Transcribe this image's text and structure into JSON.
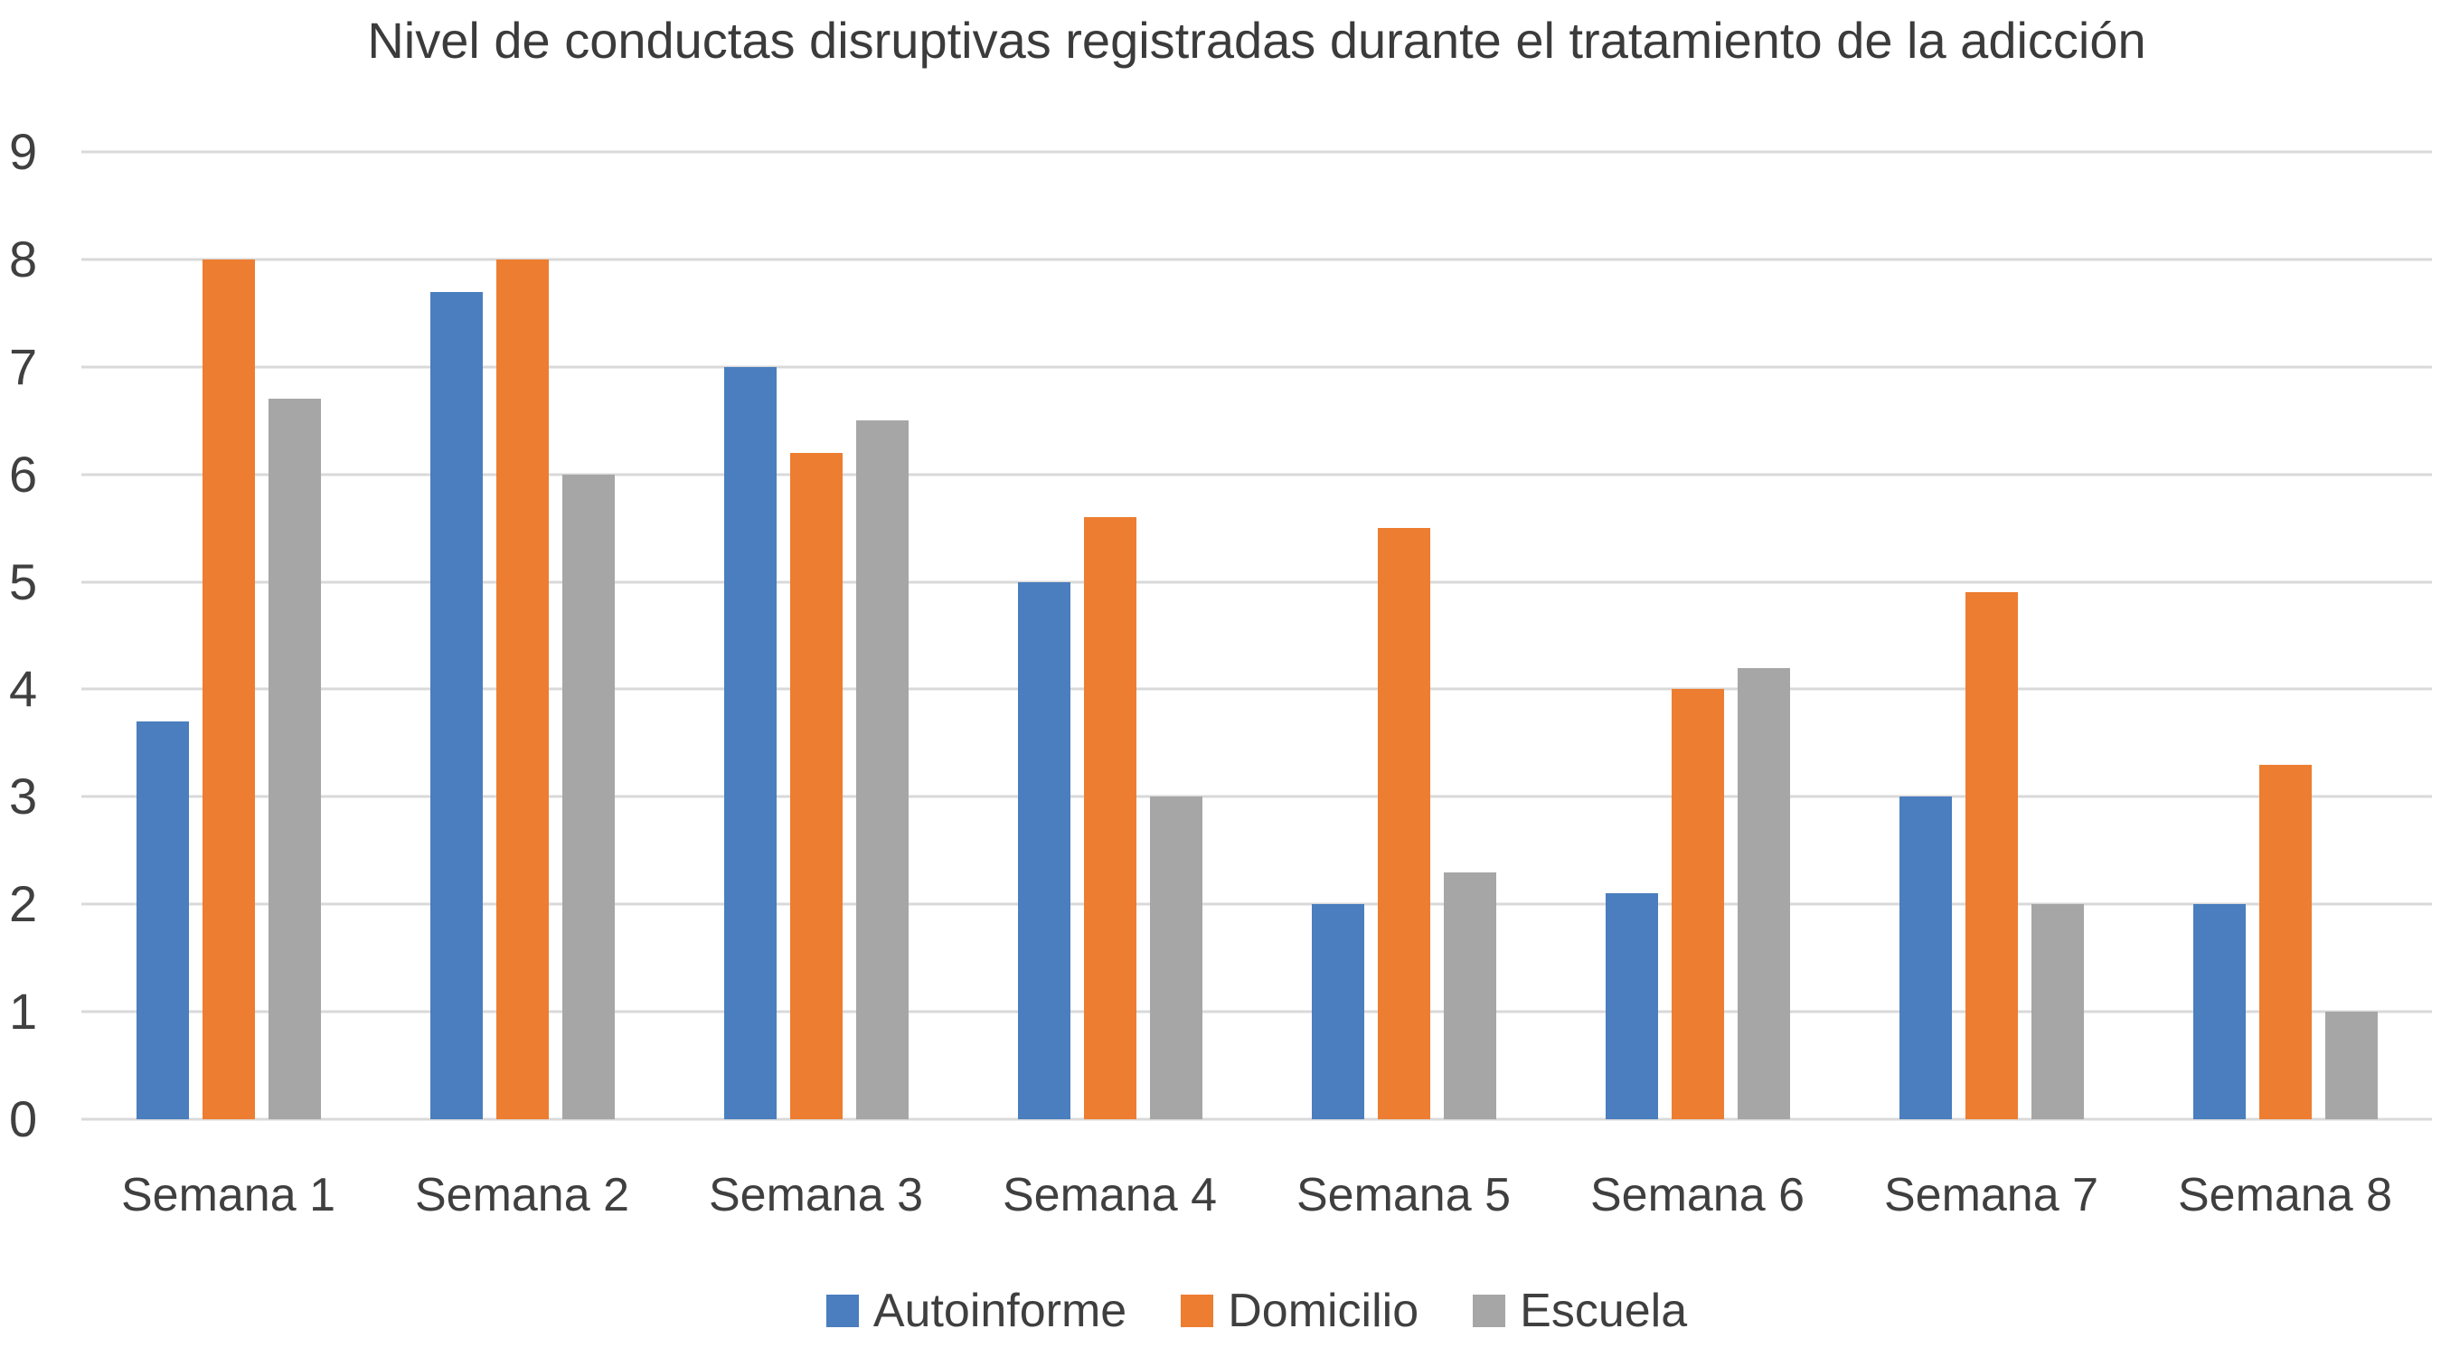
{
  "chart_data": {
    "type": "bar",
    "title": "Nivel de conductas disruptivas registradas durante el tratamiento de la adicción",
    "categories": [
      "Semana 1",
      "Semana 2",
      "Semana 3",
      "Semana 4",
      "Semana 5",
      "Semana 6",
      "Semana 7",
      "Semana 8"
    ],
    "series": [
      {
        "name": "Autoinforme",
        "color": "#4a7ebe",
        "values": [
          3.7,
          7.7,
          7,
          5,
          2,
          2.1,
          3,
          2
        ]
      },
      {
        "name": "Domicilio",
        "color": "#ed7d31",
        "values": [
          8,
          8,
          6.2,
          5.6,
          5.5,
          4,
          4.9,
          3.3
        ]
      },
      {
        "name": "Escuela",
        "color": "#a6a6a6",
        "values": [
          6.7,
          6,
          6.5,
          3,
          2.3,
          4.2,
          2,
          1
        ]
      }
    ],
    "xlabel": "",
    "ylabel": "",
    "ylim": [
      0,
      9
    ],
    "yticks": [
      0,
      1,
      2,
      3,
      4,
      5,
      6,
      7,
      8,
      9
    ],
    "grid": true,
    "gridline_color": "#d9d9d9",
    "legend_position": "bottom"
  }
}
